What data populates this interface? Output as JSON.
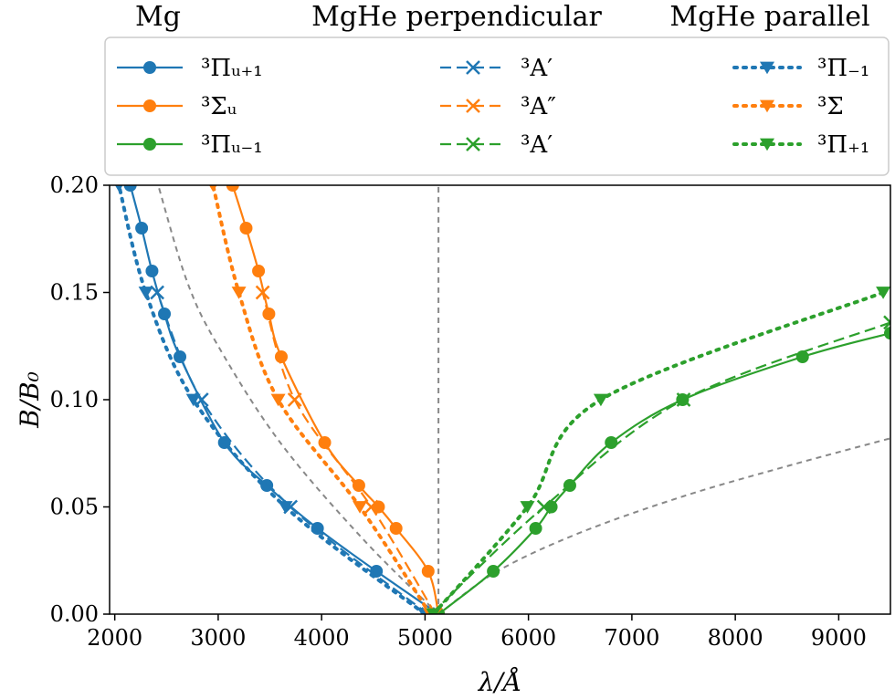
{
  "chart_data": {
    "type": "line",
    "xlabel": "λ/Å",
    "ylabel": "B/B₀",
    "xlim": [
      1950,
      9500
    ],
    "ylim": [
      0,
      0.2
    ],
    "xticks": [
      2000,
      3000,
      4000,
      5000,
      6000,
      7000,
      8000,
      9000
    ],
    "yticks": [
      0.0,
      0.05,
      0.1,
      0.15,
      0.2
    ],
    "xtick_labels": [
      "2000",
      "3000",
      "4000",
      "5000",
      "6000",
      "7000",
      "8000",
      "9000"
    ],
    "ytick_labels": [
      "0.00",
      "0.05",
      "0.10",
      "0.15",
      "0.20"
    ],
    "grid": false,
    "legend_placement": "top, outside, three columns",
    "legend_groups": [
      {
        "title": "Mg",
        "entries": [
          {
            "label": "³Πᵤ₊₁",
            "base": "Π",
            "sub": "u+1",
            "color": "#1f77b4",
            "marker": "circle",
            "style": "solid"
          },
          {
            "label": "³Σᵤ",
            "base": "Σ",
            "sub": "u",
            "color": "#ff7f0e",
            "marker": "circle",
            "style": "solid"
          },
          {
            "label": "³Πᵤ₋₁",
            "base": "Π",
            "sub": "u−1",
            "color": "#2ca02c",
            "marker": "circle",
            "style": "solid"
          }
        ]
      },
      {
        "title": "MgHe perpendicular",
        "entries": [
          {
            "label": "³A′",
            "base": "A′",
            "sub": "",
            "color": "#1f77b4",
            "marker": "x",
            "style": "dashed"
          },
          {
            "label": "³A″",
            "base": "A″",
            "sub": "",
            "color": "#ff7f0e",
            "marker": "x",
            "style": "dashed"
          },
          {
            "label": "³A′",
            "base": "A′",
            "sub": "",
            "color": "#2ca02c",
            "marker": "x",
            "style": "dashed"
          }
        ]
      },
      {
        "title": "MgHe parallel",
        "entries": [
          {
            "label": "³Π₋₁",
            "base": "Π",
            "sub": "−1",
            "color": "#1f77b4",
            "marker": "triangle-down",
            "style": "dotted"
          },
          {
            "label": "³Σ",
            "base": "Σ",
            "sub": "",
            "color": "#ff7f0e",
            "marker": "triangle-down",
            "style": "dotted"
          },
          {
            "label": "³Π₊₁",
            "base": "Π",
            "sub": "+1",
            "color": "#2ca02c",
            "marker": "triangle-down",
            "style": "dotted"
          }
        ]
      }
    ],
    "series": [
      {
        "name": "Mg ³Πᵤ₊₁",
        "color": "#1f77b4",
        "style": "solid",
        "marker": "circle",
        "x": [
          5130,
          4530,
          3960,
          3470,
          3060,
          2630,
          2480,
          2360,
          2260,
          2150
        ],
        "y": [
          0.0,
          0.02,
          0.04,
          0.06,
          0.08,
          0.12,
          0.14,
          0.16,
          0.18,
          0.2
        ]
      },
      {
        "name": "Mg ³Σᵤ",
        "color": "#ff7f0e",
        "style": "solid",
        "marker": "circle",
        "x": [
          5130,
          5030,
          4720,
          4550,
          4360,
          4030,
          3610,
          3490,
          3390,
          3270,
          3140
        ],
        "y": [
          0.0,
          0.02,
          0.04,
          0.05,
          0.06,
          0.08,
          0.12,
          0.14,
          0.16,
          0.18,
          0.2
        ]
      },
      {
        "name": "Mg ³Πᵤ₋₁",
        "color": "#2ca02c",
        "style": "solid",
        "marker": "circle",
        "x": [
          5130,
          5660,
          6070,
          6220,
          6400,
          6800,
          7490,
          8650,
          9500
        ],
        "y": [
          0.0,
          0.02,
          0.04,
          0.05,
          0.06,
          0.08,
          0.1,
          0.12,
          0.131
        ]
      },
      {
        "name": "MgHe perpendicular ³A′",
        "color": "#1f77b4",
        "style": "dashed",
        "marker": "x",
        "x": [
          5030,
          3700,
          2840,
          2410
        ],
        "y": [
          0.0,
          0.05,
          0.1,
          0.15
        ]
      },
      {
        "name": "MgHe perpendicular ³A″",
        "color": "#ff7f0e",
        "style": "dashed",
        "marker": "x",
        "x": [
          5100,
          4480,
          3740,
          3430
        ],
        "y": [
          0.0,
          0.05,
          0.1,
          0.15
        ]
      },
      {
        "name": "MgHe perpendicular ³A′",
        "color": "#2ca02c",
        "style": "dashed",
        "marker": "x",
        "x": [
          5060,
          6150,
          7500,
          9500
        ],
        "y": [
          0.0,
          0.05,
          0.1,
          0.136
        ]
      },
      {
        "name": "MgHe parallel ³Π₋₁",
        "color": "#1f77b4",
        "style": "dotted",
        "marker": "triangle-down",
        "x": [
          5000,
          3650,
          2760,
          2300,
          2040
        ],
        "y": [
          0.0,
          0.05,
          0.1,
          0.15,
          0.2
        ]
      },
      {
        "name": "MgHe parallel ³Σ",
        "color": "#ff7f0e",
        "style": "dotted",
        "marker": "triangle-down",
        "x": [
          5050,
          4370,
          3580,
          3200,
          2950
        ],
        "y": [
          0.0,
          0.05,
          0.1,
          0.15,
          0.2
        ]
      },
      {
        "name": "MgHe parallel ³Π₊₁",
        "color": "#2ca02c",
        "style": "dotted",
        "marker": "triangle-down",
        "x": [
          5080,
          5990,
          6700,
          9430
        ],
        "y": [
          0.0,
          0.05,
          0.1,
          0.15
        ]
      }
    ],
    "reference_lines": [
      {
        "color": "#888888",
        "style": "dashed",
        "x": [
          5130,
          4400,
          3600,
          3000,
          2700,
          2420
        ],
        "y": [
          0.0,
          0.035,
          0.08,
          0.125,
          0.155,
          0.2
        ]
      },
      {
        "color": "#888888",
        "style": "dashed",
        "x": [
          5130,
          5700,
          6500,
          7500,
          8500,
          9500
        ],
        "y": [
          0.0,
          0.02,
          0.038,
          0.055,
          0.069,
          0.082
        ]
      },
      {
        "color": "#888888",
        "style": "dashed",
        "x": [
          5130,
          5130
        ],
        "y": [
          0.0,
          0.2
        ]
      }
    ]
  }
}
